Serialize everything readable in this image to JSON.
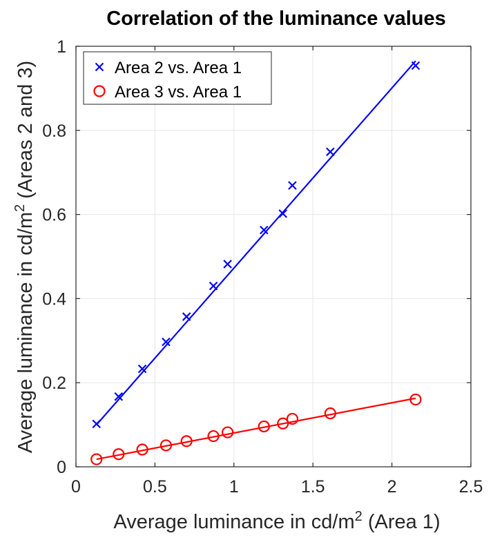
{
  "chart_data": {
    "type": "scatter",
    "title": "Correlation of the luminance values",
    "xlabel": {
      "main": "Average luminance in cd/m",
      "sup": "2",
      "tail": " (Area 1)"
    },
    "ylabel": {
      "main": "Average luminance in cd/m",
      "sup": "2",
      "tail": " (Areas 2 and 3)"
    },
    "xlim": [
      0,
      2.5
    ],
    "ylim": [
      0,
      1
    ],
    "xticks": [
      0,
      0.5,
      1,
      1.5,
      2,
      2.5
    ],
    "xtick_labels": [
      "0",
      "0.5",
      "1",
      "1.5",
      "2",
      "2.5"
    ],
    "yticks": [
      0,
      0.2,
      0.4,
      0.6,
      0.8,
      1
    ],
    "ytick_labels": [
      "0",
      "0.2",
      "0.4",
      "0.6",
      "0.8",
      "1"
    ],
    "grid": true,
    "legend_position": "top-left",
    "series": [
      {
        "name": "Area 2 vs. Area 1",
        "marker": "x",
        "color": "#0000ff",
        "x": [
          0.13,
          0.27,
          0.42,
          0.57,
          0.7,
          0.87,
          0.96,
          1.19,
          1.31,
          1.37,
          1.61,
          2.15
        ],
        "y": [
          0.102,
          0.167,
          0.233,
          0.297,
          0.357,
          0.43,
          0.482,
          0.563,
          0.602,
          0.669,
          0.749,
          0.954
        ],
        "fit_line": {
          "x": [
            0.13,
            2.15
          ],
          "y": [
            0.1,
            0.965
          ]
        }
      },
      {
        "name": "Area 3 vs. Area 1",
        "marker": "o",
        "color": "#ff0000",
        "x": [
          0.13,
          0.27,
          0.42,
          0.57,
          0.7,
          0.87,
          0.96,
          1.19,
          1.31,
          1.37,
          1.61,
          2.15
        ],
        "y": [
          0.018,
          0.03,
          0.041,
          0.051,
          0.061,
          0.073,
          0.082,
          0.096,
          0.103,
          0.114,
          0.127,
          0.16
        ],
        "fit_line": {
          "x": [
            0.13,
            2.15
          ],
          "y": [
            0.018,
            0.163
          ]
        }
      }
    ]
  }
}
